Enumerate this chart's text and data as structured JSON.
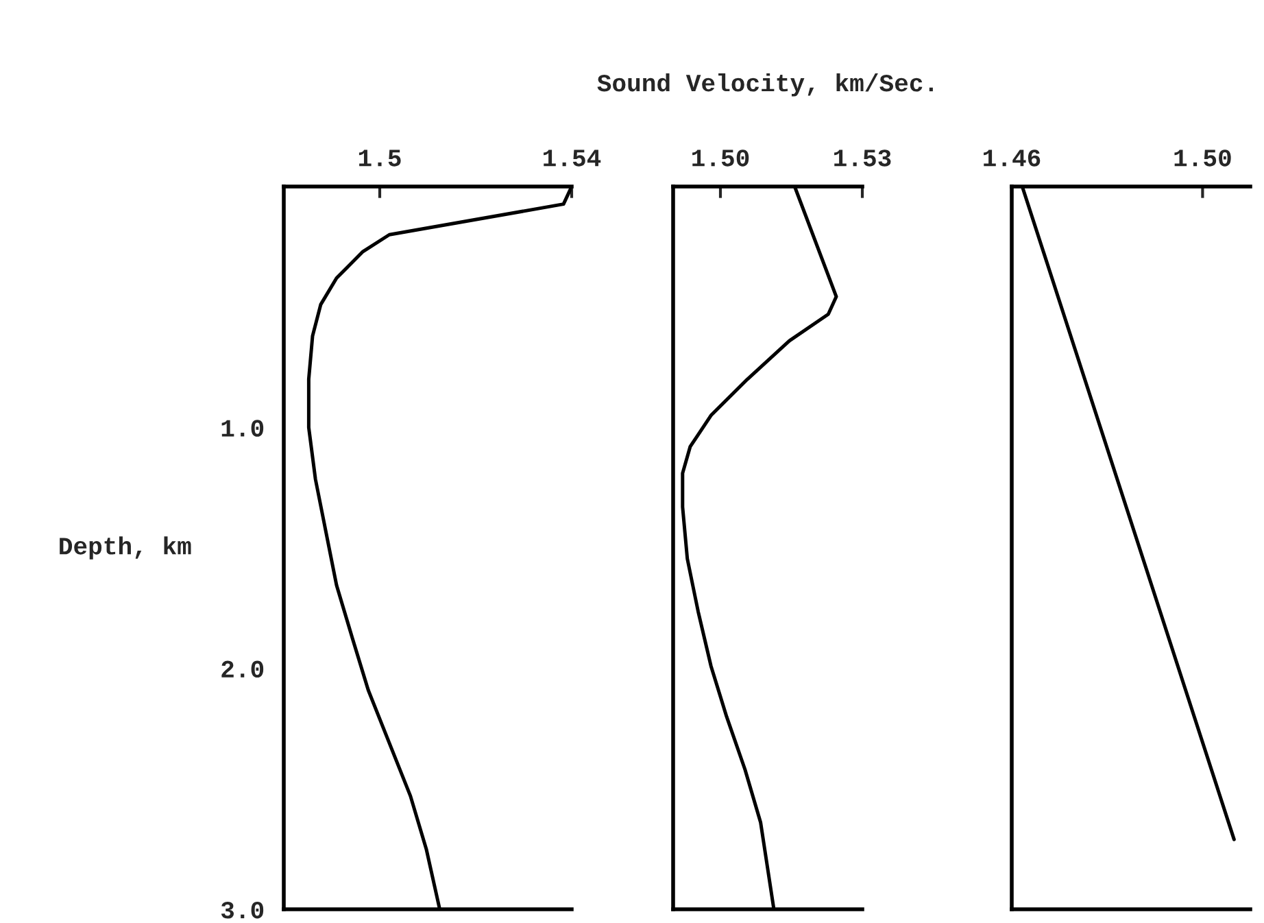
{
  "chart_data": [
    {
      "type": "line",
      "ylabel": "Depth, km",
      "xlim": [
        1.48,
        1.54
      ],
      "xticks": [
        1.5,
        1.54
      ],
      "ylim": [
        3.0,
        0
      ],
      "yticks": [
        {
          "value": 1,
          "label": "1.0"
        },
        {
          "value": 2,
          "label": "2.0"
        },
        {
          "value": 3,
          "label": "3.0"
        }
      ],
      "grid": false,
      "legend": false,
      "series": [
        {
          "color": "#000000",
          "x": [
            1.54,
            1.5383,
            1.502,
            1.4965,
            1.491,
            1.4877,
            1.486,
            1.4852,
            1.4852,
            1.4866,
            1.4888,
            1.491,
            1.4943,
            1.4976,
            1.502,
            1.5064,
            1.5097,
            1.5125
          ],
          "values": [
            0,
            0.073,
            0.2,
            0.27,
            0.38,
            0.49,
            0.62,
            0.8,
            1.0,
            1.215,
            1.435,
            1.655,
            1.875,
            2.09,
            2.31,
            2.53,
            2.75,
            3.0
          ]
        }
      ]
    },
    {
      "type": "line",
      "title": "Sound Velocity, km/Sec.",
      "xlim": [
        1.49,
        1.53
      ],
      "xticks": [
        {
          "value": 1.5,
          "label": "1.50"
        },
        1.53
      ],
      "ylim": [
        3.0,
        0
      ],
      "yticks": [
        {
          "value": 1,
          "label": null
        },
        {
          "value": 2,
          "label": null
        },
        {
          "value": 3,
          "label": null
        }
      ],
      "tick_labels": "x",
      "grid": false,
      "legend": false,
      "series": [
        {
          "color": "#000000",
          "x": [
            1.5157,
            1.5245,
            1.5228,
            1.5146,
            1.5057,
            1.498,
            1.4936,
            1.492,
            1.492,
            1.493,
            1.4953,
            1.498,
            1.5013,
            1.5052,
            1.5085,
            1.5113
          ],
          "values": [
            0,
            0.457,
            0.53,
            0.64,
            0.8,
            0.95,
            1.08,
            1.19,
            1.33,
            1.545,
            1.765,
            1.99,
            2.2,
            2.42,
            2.64,
            3.0
          ]
        }
      ]
    },
    {
      "type": "line",
      "xlim": [
        1.46,
        1.51
      ],
      "xticks": [
        1.46,
        {
          "value": 1.5,
          "label": "1.50"
        }
      ],
      "ylim": [
        3.0,
        0
      ],
      "yticks": [
        {
          "value": 1,
          "label": null
        },
        {
          "value": 2,
          "label": null
        },
        {
          "value": 3,
          "label": null
        }
      ],
      "tick_labels": "x",
      "grid": false,
      "legend": false,
      "series": [
        {
          "color": "#000000",
          "x": [
            1.4622,
            1.5066
          ],
          "values": [
            0,
            2.71
          ]
        }
      ]
    }
  ]
}
